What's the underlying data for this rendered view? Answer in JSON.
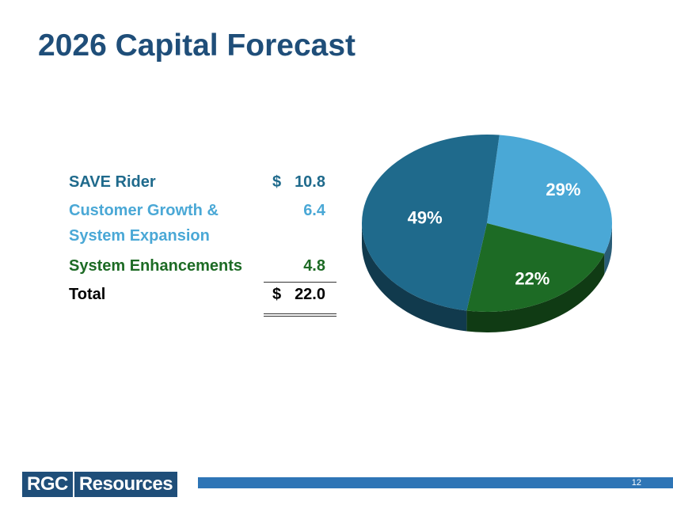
{
  "title": "2026 Capital Forecast",
  "colors": {
    "title": "#1f4e79",
    "save_rider": "#1f6a8c",
    "customer_growth": "#4aa8d6",
    "system_enhancements": "#1d6b25",
    "total": "#000000"
  },
  "table": {
    "rows": [
      {
        "label": "SAVE Rider",
        "currency": "$",
        "amount": "10.8"
      },
      {
        "label_line1": "Customer Growth &",
        "label_line2": "System Expansion",
        "amount": "6.4"
      },
      {
        "label": "System Enhancements",
        "amount": "4.8"
      }
    ],
    "total": {
      "label": "Total",
      "currency": "$",
      "amount": "22.0"
    }
  },
  "chart_data": {
    "type": "pie",
    "slices": [
      {
        "label": "49%",
        "value": 49,
        "color": "#1f6a8c"
      },
      {
        "label": "29%",
        "value": 29,
        "color": "#4aa8d6"
      },
      {
        "label": "22%",
        "value": 22,
        "color": "#1d6b25"
      }
    ]
  },
  "footer": {
    "logo_part1": "RGC",
    "logo_part2": "Resources",
    "page_number": "12"
  }
}
